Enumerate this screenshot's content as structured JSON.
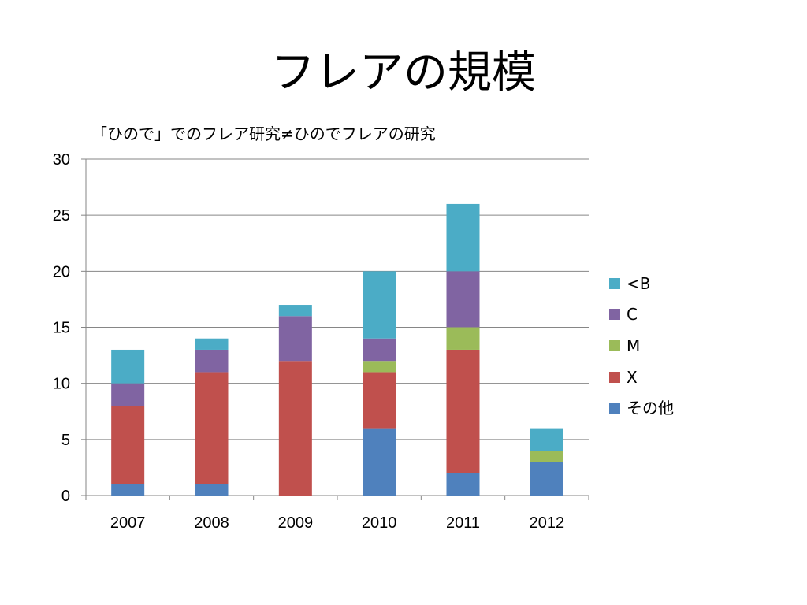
{
  "slide": {
    "title": "フレアの規模",
    "subtitle": "「ひので」でのフレア研究≠ひのでフレアの研究"
  },
  "chart_data": {
    "type": "bar",
    "stacked": true,
    "categories": [
      "2007",
      "2008",
      "2009",
      "2010",
      "2011",
      "2012"
    ],
    "series": [
      {
        "name": "その他",
        "color": "#4F81BD",
        "values": [
          1,
          1,
          0,
          6,
          2,
          3
        ]
      },
      {
        "name": "X",
        "color": "#C0504D",
        "values": [
          7,
          10,
          12,
          5,
          11,
          0
        ]
      },
      {
        "name": "M",
        "color": "#9BBB59",
        "values": [
          0,
          0,
          0,
          1,
          2,
          1
        ]
      },
      {
        "name": "C",
        "color": "#8064A2",
        "values": [
          2,
          2,
          4,
          2,
          5,
          0
        ]
      },
      {
        "name": "<B",
        "color": "#4BACC6",
        "values": [
          3,
          1,
          1,
          6,
          6,
          2
        ]
      }
    ],
    "legend_order": [
      "<B",
      "C",
      "M",
      "X",
      "その他"
    ],
    "ylim": [
      0,
      30
    ],
    "yticks": [
      0,
      5,
      10,
      15,
      20,
      25,
      30
    ],
    "grid": true,
    "legend_position": "right"
  }
}
